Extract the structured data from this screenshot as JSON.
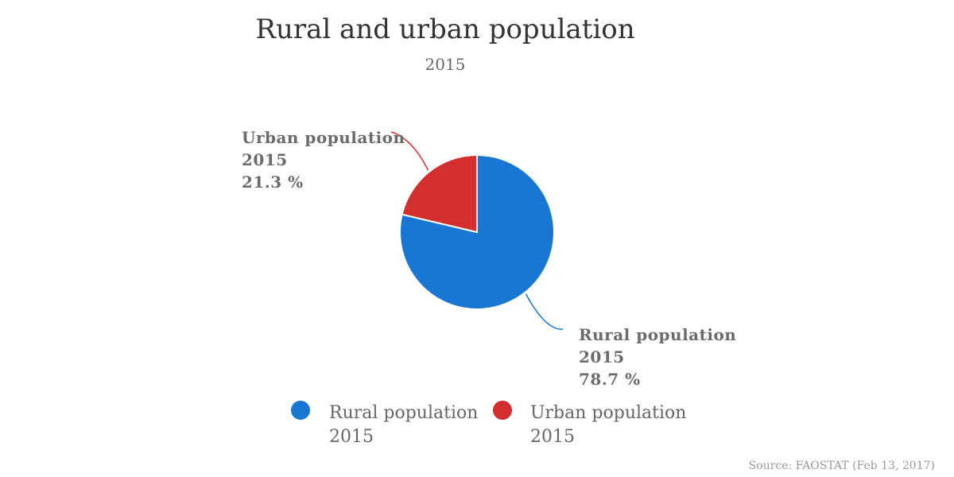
{
  "chart_data": {
    "type": "pie",
    "title": "Rural and urban population",
    "subtitle": "2015",
    "slices": [
      {
        "name": "Rural population 2015",
        "value": 78.7,
        "label_lines": [
          "Rural population",
          "2015",
          "78.7 %"
        ],
        "color": "#1976d2"
      },
      {
        "name": "Urban population 2015",
        "value": 21.3,
        "label_lines": [
          "Urban population",
          "2015",
          "21.3 %"
        ],
        "color": "#d32f2f"
      }
    ],
    "legend": {
      "placement": "bottom",
      "entries": [
        {
          "lines": [
            "Rural population",
            "2015"
          ],
          "color": "#1976d2"
        },
        {
          "lines": [
            "Urban population",
            "2015"
          ],
          "color": "#d32f2f"
        }
      ]
    },
    "unit": "%",
    "source": "Source: FAOSTAT (Feb 13, 2017)"
  }
}
